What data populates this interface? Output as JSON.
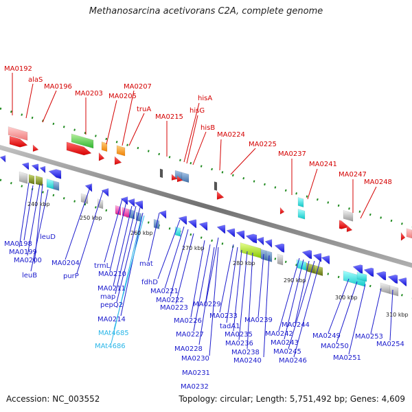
{
  "title": "Methanosarcina acetivorans C2A, complete genome",
  "accession": "Accession: NC_003552",
  "topology": "Topology: circular; Length: 5,751,492 bp; Genes: 4,609",
  "colors": {
    "top_label": "#d40000",
    "bottom_label": "#1a1acc",
    "rna_label": "#29b6e8",
    "backbone": "#8a8a8a",
    "tick": "#1f8a1f"
  },
  "ticks": [
    "240 kbp",
    "250 kbp",
    "260 kbp",
    "270 kbp",
    "280 kbp",
    "290 kbp",
    "300 kbp",
    "310 kbp"
  ],
  "top_labels": [
    "MA0192",
    "alaS",
    "MA0196",
    "MA0203",
    "MA0205",
    "MA0207",
    "truA",
    "MA0215",
    "hisA",
    "hisG",
    "hisB",
    "MA0224",
    "MA0225",
    "MA0237",
    "MA0241",
    "MA0247",
    "MA0248"
  ],
  "bottom_labels": [
    "leuD",
    "MA0198",
    "MA0199",
    "MA0200",
    "leuB",
    "MA0204",
    "purP",
    "trmL",
    "MA0210",
    "MA0211",
    "map",
    "pepQ2",
    "MA0214",
    "mat",
    "fdhD",
    "MA0221",
    "MA0222",
    "MA0223",
    "MA0226",
    "MA0227",
    "MA0228",
    "MA0229",
    "MA0230",
    "MA0231",
    "MA0232",
    "MA0233",
    "tadA1",
    "MA0235",
    "MA0236",
    "MA0238",
    "MA0239",
    "MA0240",
    "MA0242",
    "MA0243",
    "MA0244",
    "MA0245",
    "MA0246",
    "MA0249",
    "MA0250",
    "MA0251",
    "MA0253",
    "MA0254"
  ],
  "rna_labels": [
    "MAt4685",
    "MAt4686"
  ]
}
